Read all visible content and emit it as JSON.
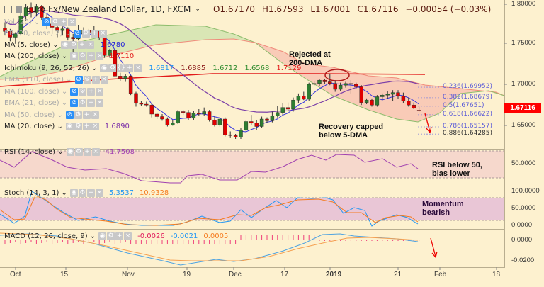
{
  "header": {
    "symbol_title": "Euro Fx/New Zealand Dollar, 1D, FXCM",
    "ohlc": {
      "open": "O1.67170",
      "high": "H1.67593",
      "low": "L1.67001",
      "close": "C1.67116",
      "change": "−0.00054 (−0.03%)"
    }
  },
  "indicators": [
    {
      "label": "Vol (20)",
      "dim": true,
      "hidden": true,
      "value": ""
    },
    {
      "label": "BB (20, close, 2)",
      "dim": true,
      "hidden": true,
      "value": ""
    },
    {
      "label": "MA (5, close)",
      "dim": false,
      "hidden": false,
      "value": "1.6780",
      "color": "#2323d8"
    },
    {
      "label": "MA (200, close)",
      "dim": false,
      "hidden": false,
      "value": "1.7110",
      "color": "#e21b1b"
    },
    {
      "label": "Ichimoku (9, 26, 52, 26)",
      "dim": false,
      "hidden": false,
      "values": [
        {
          "v": "1.6817",
          "color": "#2196f3"
        },
        {
          "v": "1.6885",
          "color": "#8b1a1a"
        },
        {
          "v": "1.6712",
          "color": "#2e8b2e"
        },
        {
          "v": "1.6568",
          "color": "#2e8b2e"
        },
        {
          "v": "1.7129",
          "color": "#e21b1b"
        }
      ]
    },
    {
      "label": "EMA (110, close)",
      "dim": true,
      "hidden": true,
      "value": ""
    },
    {
      "label": "MA (100, close)",
      "dim": true,
      "hidden": true,
      "value": ""
    },
    {
      "label": "EMA (21, close)",
      "dim": true,
      "hidden": true,
      "value": ""
    },
    {
      "label": "MA (50, close)",
      "dim": true,
      "hidden": true,
      "value": ""
    },
    {
      "label": "MA (20, close)",
      "dim": false,
      "hidden": false,
      "value": "1.6890",
      "color": "#7b2fa8"
    }
  ],
  "annotations": {
    "rejected": "Rejected at\n200-DMA",
    "recovery": "Recovery capped\nbelow 5-DMA",
    "rsi_note": "RSI below 50,\nbias lower",
    "momentum": "Momentum\nbearish"
  },
  "fib_levels": [
    {
      "label": "0.236(1.69952)",
      "price": 1.69952
    },
    {
      "label": "0.382(1.68679)",
      "price": 1.68679
    },
    {
      "label": "0.5(1.67651)",
      "price": 1.67651
    },
    {
      "label": "0.618(1.66622)",
      "price": 1.66622
    },
    {
      "label": "0.786(1.65157)",
      "price": 1.65157
    },
    {
      "label": "0.886(1.64285)",
      "price": 1.64285
    }
  ],
  "last_price_tag": "1.67116",
  "rsi": {
    "label": "RSI (14, close)",
    "value": "41.7508",
    "color": "#a040b0"
  },
  "stoch": {
    "label": "Stoch (14, 3, 1)",
    "k": "5.3537",
    "d": "10.9328",
    "k_color": "#2196f3",
    "d_color": "#f57c20"
  },
  "macd": {
    "label": "MACD (12, 26, close, 9)",
    "hist": "-0.0026",
    "macd": "-0.0021",
    "signal": "0.0005"
  },
  "chart_data": {
    "type": "candlestick",
    "title": "Euro Fx/New Zealand Dollar, 1D, FXCM",
    "xlabel": "",
    "ylabel": "",
    "x_ticks": [
      "Oct",
      "15",
      "Nov",
      "19",
      "Dec",
      "17",
      "2019",
      "21",
      "Feb",
      "18"
    ],
    "y_ticks_main": [
      "1.80000",
      "1.75000",
      "1.70000",
      "1.65000"
    ],
    "ylim_main": [
      1.625,
      1.805
    ],
    "y_ticks_rsi": [
      "50.0000"
    ],
    "y_ticks_stoch": [
      "100.0000",
      "50.0000",
      "0.0000"
    ],
    "y_ticks_macd": [
      "0.0000",
      "-0.0200"
    ],
    "candles": [
      [
        1.771,
        1.778,
        1.762,
        1.767
      ],
      [
        1.767,
        1.77,
        1.755,
        1.76
      ],
      [
        1.76,
        1.766,
        1.752,
        1.764
      ],
      [
        1.764,
        1.79,
        1.762,
        1.786
      ],
      [
        1.786,
        1.8,
        1.78,
        1.796
      ],
      [
        1.796,
        1.802,
        1.784,
        1.79
      ],
      [
        1.79,
        1.8,
        1.785,
        1.797
      ],
      [
        1.797,
        1.799,
        1.781,
        1.784
      ],
      [
        1.784,
        1.788,
        1.77,
        1.776
      ],
      [
        1.776,
        1.779,
        1.764,
        1.772
      ],
      [
        1.772,
        1.775,
        1.76,
        1.768
      ],
      [
        1.768,
        1.773,
        1.762,
        1.77
      ],
      [
        1.77,
        1.772,
        1.756,
        1.76
      ],
      [
        1.76,
        1.764,
        1.742,
        1.758
      ],
      [
        1.758,
        1.775,
        1.756,
        1.764
      ],
      [
        1.764,
        1.772,
        1.76,
        1.768
      ],
      [
        1.768,
        1.77,
        1.76,
        1.766
      ],
      [
        1.766,
        1.774,
        1.763,
        1.767
      ],
      [
        1.767,
        1.769,
        1.757,
        1.76
      ],
      [
        1.76,
        1.762,
        1.735,
        1.738
      ],
      [
        1.738,
        1.746,
        1.735,
        1.744
      ],
      [
        1.744,
        1.746,
        1.712,
        1.713
      ],
      [
        1.713,
        1.717,
        1.707,
        1.71
      ],
      [
        1.71,
        1.715,
        1.706,
        1.713
      ],
      [
        1.713,
        1.714,
        1.69,
        1.692
      ],
      [
        1.692,
        1.694,
        1.676,
        1.68
      ],
      [
        1.68,
        1.683,
        1.677,
        1.679
      ],
      [
        1.679,
        1.682,
        1.676,
        1.678
      ],
      [
        1.678,
        1.68,
        1.663,
        1.667
      ],
      [
        1.667,
        1.669,
        1.661,
        1.664
      ],
      [
        1.664,
        1.667,
        1.659,
        1.661
      ],
      [
        1.661,
        1.663,
        1.652,
        1.654
      ],
      [
        1.654,
        1.66,
        1.653,
        1.656
      ],
      [
        1.656,
        1.672,
        1.655,
        1.67
      ],
      [
        1.67,
        1.672,
        1.666,
        1.669
      ],
      [
        1.669,
        1.672,
        1.66,
        1.662
      ],
      [
        1.662,
        1.671,
        1.66,
        1.668
      ],
      [
        1.668,
        1.673,
        1.665,
        1.667
      ],
      [
        1.667,
        1.675,
        1.665,
        1.67
      ],
      [
        1.67,
        1.672,
        1.658,
        1.66
      ],
      [
        1.66,
        1.664,
        1.652,
        1.654
      ],
      [
        1.654,
        1.663,
        1.652,
        1.661
      ],
      [
        1.661,
        1.663,
        1.64,
        1.642
      ],
      [
        1.642,
        1.646,
        1.638,
        1.641
      ],
      [
        1.641,
        1.643,
        1.637,
        1.639
      ],
      [
        1.639,
        1.65,
        1.637,
        1.648
      ],
      [
        1.648,
        1.66,
        1.646,
        1.658
      ],
      [
        1.658,
        1.666,
        1.654,
        1.656
      ],
      [
        1.656,
        1.66,
        1.648,
        1.652
      ],
      [
        1.652,
        1.664,
        1.65,
        1.661
      ],
      [
        1.661,
        1.663,
        1.656,
        1.659
      ],
      [
        1.659,
        1.67,
        1.657,
        1.665
      ],
      [
        1.665,
        1.677,
        1.663,
        1.669
      ],
      [
        1.669,
        1.68,
        1.666,
        1.675
      ],
      [
        1.675,
        1.681,
        1.67,
        1.673
      ],
      [
        1.673,
        1.687,
        1.67,
        1.684
      ],
      [
        1.684,
        1.692,
        1.68,
        1.689
      ],
      [
        1.689,
        1.694,
        1.684,
        1.685
      ],
      [
        1.685,
        1.705,
        1.683,
        1.703
      ],
      [
        1.703,
        1.707,
        1.701,
        1.704
      ],
      [
        1.704,
        1.709,
        1.701,
        1.708
      ],
      [
        1.708,
        1.709,
        1.703,
        1.706
      ],
      [
        1.706,
        1.716,
        1.702,
        1.704
      ],
      [
        1.704,
        1.708,
        1.694,
        1.697
      ],
      [
        1.697,
        1.705,
        1.695,
        1.702
      ],
      [
        1.702,
        1.706,
        1.699,
        1.704
      ],
      [
        1.704,
        1.708,
        1.692,
        1.703
      ],
      [
        1.703,
        1.705,
        1.698,
        1.7
      ],
      [
        1.7,
        1.702,
        1.678,
        1.681
      ],
      [
        1.681,
        1.686,
        1.679,
        1.684
      ],
      [
        1.684,
        1.686,
        1.676,
        1.678
      ],
      [
        1.678,
        1.69,
        1.676,
        1.688
      ],
      [
        1.688,
        1.692,
        1.684,
        1.69
      ],
      [
        1.69,
        1.695,
        1.686,
        1.691
      ],
      [
        1.691,
        1.696,
        1.683,
        1.693
      ],
      [
        1.693,
        1.696,
        1.685,
        1.689
      ],
      [
        1.689,
        1.693,
        1.68,
        1.683
      ],
      [
        1.683,
        1.687,
        1.676,
        1.678
      ],
      [
        1.678,
        1.681,
        1.673,
        1.674
      ],
      [
        1.6717,
        1.67593,
        1.67001,
        1.67116
      ]
    ],
    "series": [
      {
        "name": "MA (5, close)",
        "last": 1.678
      },
      {
        "name": "MA (20, close)",
        "last": 1.689
      },
      {
        "name": "MA (200, close)",
        "last": 1.711
      },
      {
        "name": "RSI (14)",
        "last": 41.7508
      },
      {
        "name": "Stoch %K",
        "last": 5.3537
      },
      {
        "name": "Stoch %D",
        "last": 10.9328
      },
      {
        "name": "MACD hist",
        "last": -0.0026
      },
      {
        "name": "MACD",
        "last": -0.0021
      },
      {
        "name": "MACD signal",
        "last": 0.0005
      }
    ]
  }
}
